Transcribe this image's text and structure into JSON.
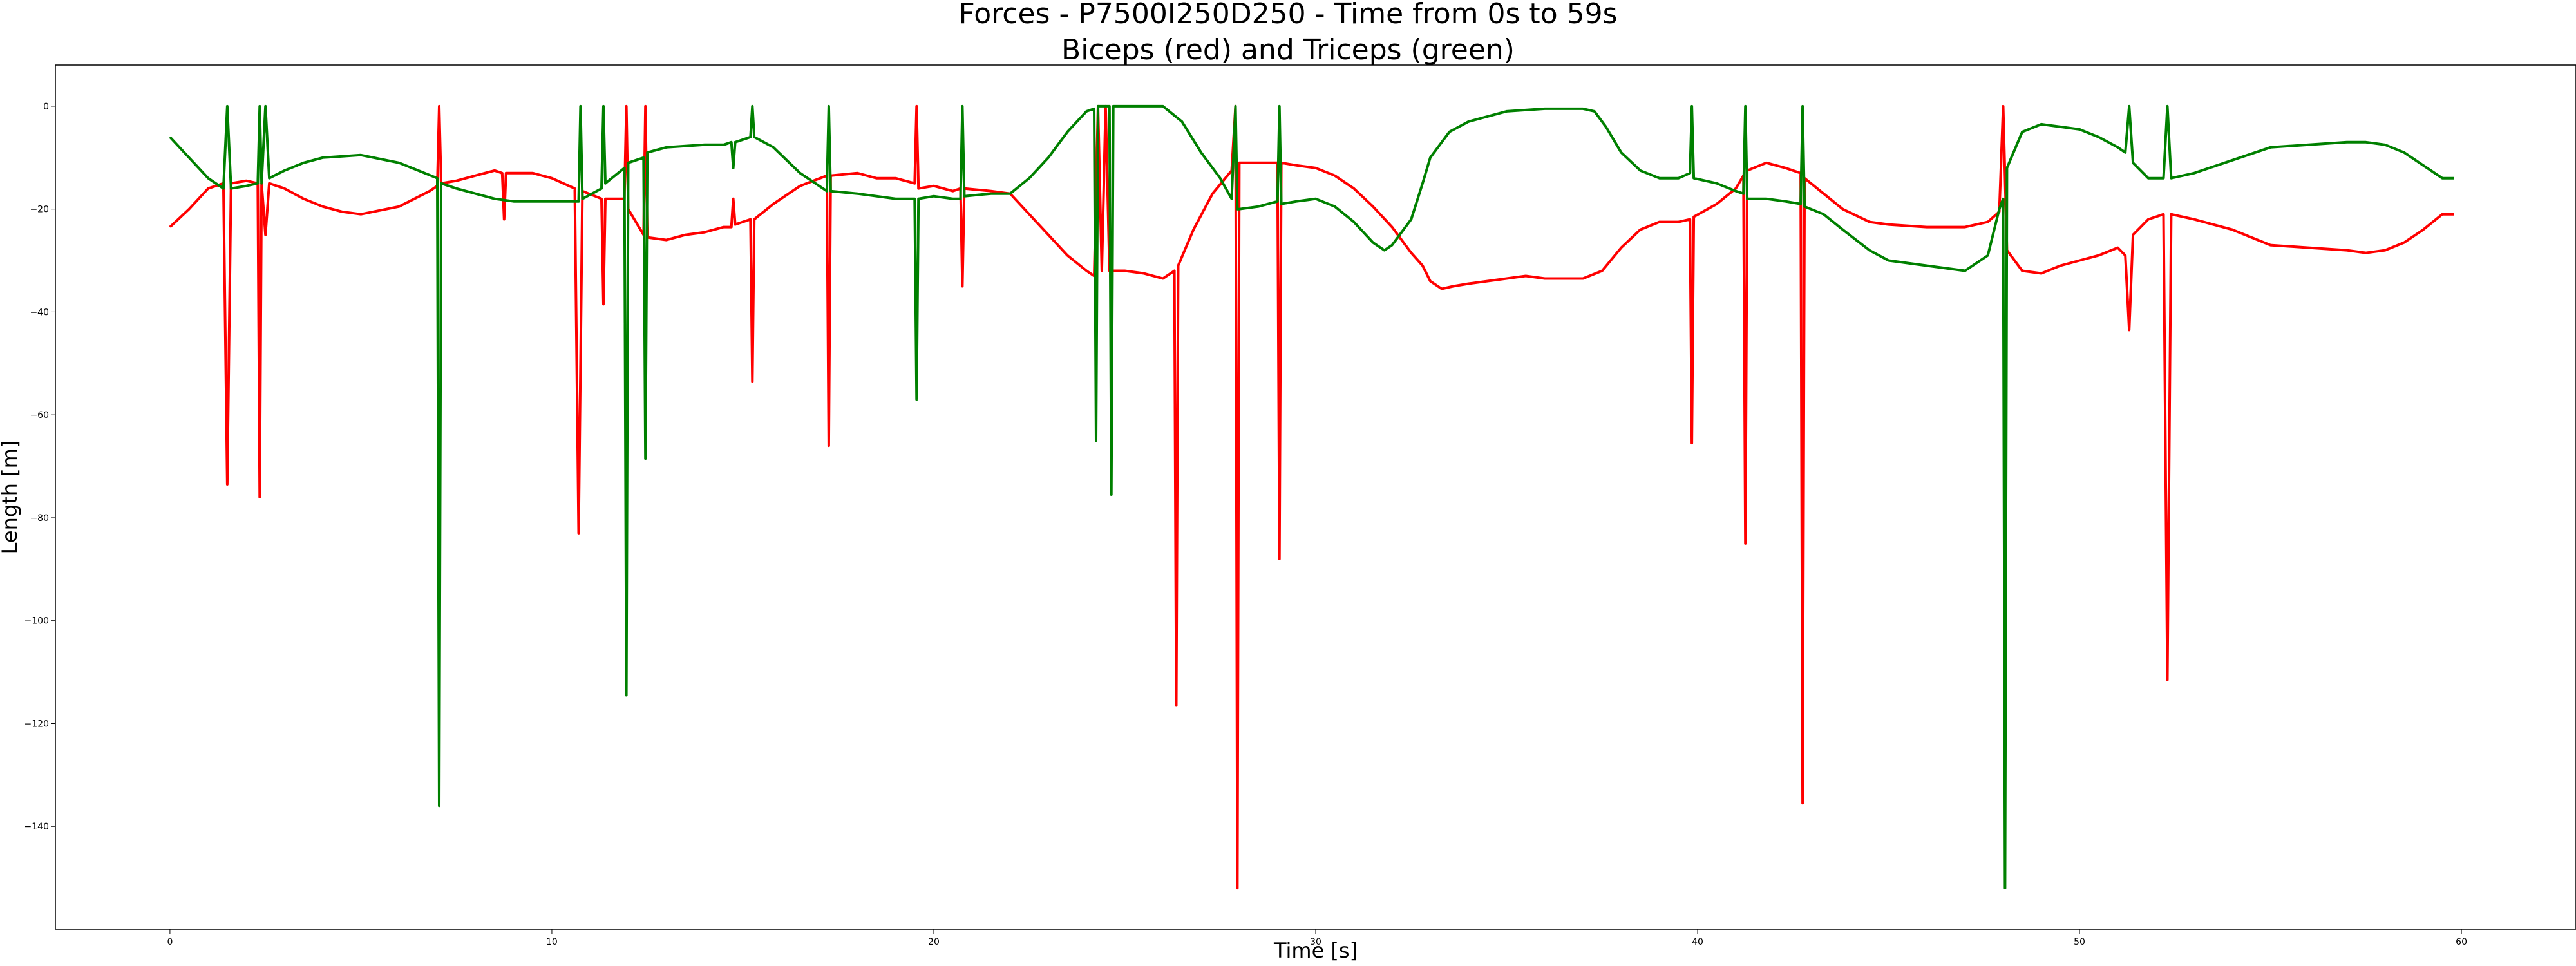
{
  "chart_data": {
    "type": "line",
    "title": "Forces - P7500I250D250 - Time from 0s to 59s",
    "subtitle": "Biceps (red) and Triceps (green)",
    "xlabel": "Time [s]",
    "ylabel": "Length [m]",
    "xlim": [
      -3,
      63
    ],
    "ylim": [
      -160,
      8
    ],
    "xticks": [
      0,
      10,
      20,
      30,
      40,
      50,
      60
    ],
    "yticks": [
      0,
      -20,
      -40,
      -60,
      -80,
      -100,
      -120,
      -140
    ],
    "grid": false,
    "legend": "none",
    "series": [
      {
        "color": "#ff0000",
        "points": [
          [
            0,
            -23.5
          ],
          [
            0.5,
            -20
          ],
          [
            1.0,
            -16
          ],
          [
            1.4,
            -15
          ],
          [
            1.5,
            -73.5
          ],
          [
            1.6,
            -15
          ],
          [
            2.0,
            -14.5
          ],
          [
            2.3,
            -15
          ],
          [
            2.35,
            -76
          ],
          [
            2.4,
            -15
          ],
          [
            2.5,
            -25
          ],
          [
            2.6,
            -15
          ],
          [
            3.0,
            -16
          ],
          [
            3.5,
            -18
          ],
          [
            4.0,
            -19.5
          ],
          [
            4.5,
            -20.5
          ],
          [
            5.0,
            -21
          ],
          [
            6.0,
            -19.5
          ],
          [
            6.8,
            -16.5
          ],
          [
            7.0,
            -15.5
          ],
          [
            7.05,
            0
          ],
          [
            7.1,
            -15
          ],
          [
            7.5,
            -14.5
          ],
          [
            8.0,
            -13.5
          ],
          [
            8.5,
            -12.5
          ],
          [
            8.7,
            -13
          ],
          [
            8.75,
            -22
          ],
          [
            8.8,
            -13
          ],
          [
            9.5,
            -13
          ],
          [
            10.0,
            -14
          ],
          [
            10.6,
            -16
          ],
          [
            10.7,
            -83
          ],
          [
            10.8,
            -16.5
          ],
          [
            11.3,
            -18
          ],
          [
            11.35,
            -38.5
          ],
          [
            11.4,
            -18
          ],
          [
            11.9,
            -18
          ],
          [
            11.95,
            0
          ],
          [
            12.0,
            -20
          ],
          [
            12.4,
            -25
          ],
          [
            12.45,
            0
          ],
          [
            12.5,
            -25.5
          ],
          [
            13.0,
            -26
          ],
          [
            13.5,
            -25
          ],
          [
            14.0,
            -24.5
          ],
          [
            14.5,
            -23.5
          ],
          [
            14.7,
            -23.5
          ],
          [
            14.75,
            -18
          ],
          [
            14.8,
            -23
          ],
          [
            15.2,
            -22
          ],
          [
            15.25,
            -53.5
          ],
          [
            15.3,
            -22
          ],
          [
            15.8,
            -19
          ],
          [
            16.5,
            -15.5
          ],
          [
            17.2,
            -13.5
          ],
          [
            17.25,
            -66
          ],
          [
            17.3,
            -13.5
          ],
          [
            18.0,
            -13
          ],
          [
            18.5,
            -14
          ],
          [
            19.0,
            -14
          ],
          [
            19.5,
            -15
          ],
          [
            19.55,
            0
          ],
          [
            19.6,
            -16
          ],
          [
            20.0,
            -15.5
          ],
          [
            20.5,
            -16.5
          ],
          [
            20.7,
            -16
          ],
          [
            20.75,
            -35
          ],
          [
            20.8,
            -16
          ],
          [
            21.5,
            -16.5
          ],
          [
            22.0,
            -17
          ],
          [
            22.5,
            -21
          ],
          [
            23.0,
            -25
          ],
          [
            23.5,
            -29
          ],
          [
            24.0,
            -32
          ],
          [
            24.2,
            -33
          ],
          [
            24.3,
            0
          ],
          [
            24.4,
            -32
          ],
          [
            24.5,
            0
          ],
          [
            24.6,
            -32
          ],
          [
            25.0,
            -32
          ],
          [
            25.5,
            -32.5
          ],
          [
            26.0,
            -33.5
          ],
          [
            26.3,
            -32
          ],
          [
            26.35,
            -116.5
          ],
          [
            26.4,
            -31
          ],
          [
            26.8,
            -24
          ],
          [
            27.3,
            -17
          ],
          [
            27.8,
            -12.5
          ],
          [
            27.9,
            0
          ],
          [
            27.95,
            -152
          ],
          [
            28.0,
            -11
          ],
          [
            28.5,
            -11
          ],
          [
            29.0,
            -11
          ],
          [
            29.05,
            -88
          ],
          [
            29.1,
            -11
          ],
          [
            29.5,
            -11.5
          ],
          [
            30.0,
            -12
          ],
          [
            30.5,
            -13.5
          ],
          [
            31.0,
            -16
          ],
          [
            31.5,
            -19.5
          ],
          [
            32.0,
            -23.5
          ],
          [
            32.5,
            -28.5
          ],
          [
            32.8,
            -31
          ],
          [
            33.0,
            -34
          ],
          [
            33.3,
            -35.5
          ],
          [
            33.6,
            -35
          ],
          [
            34.0,
            -34.5
          ],
          [
            35.0,
            -33.5
          ],
          [
            35.5,
            -33
          ],
          [
            36.0,
            -33.5
          ],
          [
            37.0,
            -33.5
          ],
          [
            37.5,
            -32
          ],
          [
            38.0,
            -27.5
          ],
          [
            38.5,
            -24
          ],
          [
            39.0,
            -22.5
          ],
          [
            39.5,
            -22.5
          ],
          [
            39.8,
            -22
          ],
          [
            39.85,
            -65.5
          ],
          [
            39.9,
            -21.5
          ],
          [
            40.5,
            -19
          ],
          [
            41.0,
            -16
          ],
          [
            41.2,
            -13.5
          ],
          [
            41.25,
            -85
          ],
          [
            41.3,
            -12.5
          ],
          [
            41.8,
            -11
          ],
          [
            42.3,
            -12
          ],
          [
            42.7,
            -13
          ],
          [
            42.75,
            -135.5
          ],
          [
            42.8,
            -14
          ],
          [
            43.3,
            -17
          ],
          [
            43.8,
            -20
          ],
          [
            44.5,
            -22.5
          ],
          [
            45.0,
            -23
          ],
          [
            46.0,
            -23.5
          ],
          [
            47.0,
            -23.5
          ],
          [
            47.6,
            -22.5
          ],
          [
            47.9,
            -20.5
          ],
          [
            48.0,
            0
          ],
          [
            48.1,
            -28
          ],
          [
            48.5,
            -32
          ],
          [
            49.0,
            -32.5
          ],
          [
            49.5,
            -31
          ],
          [
            50.0,
            -30
          ],
          [
            50.5,
            -29
          ],
          [
            51.0,
            -27.5
          ],
          [
            51.2,
            -29
          ],
          [
            51.3,
            -43.5
          ],
          [
            51.4,
            -25
          ],
          [
            51.8,
            -22
          ],
          [
            52.2,
            -21
          ],
          [
            52.3,
            -111.5
          ],
          [
            52.4,
            -21
          ],
          [
            53.0,
            -22
          ],
          [
            54.0,
            -24
          ],
          [
            55.0,
            -27
          ],
          [
            56.0,
            -27.5
          ],
          [
            57.0,
            -28
          ],
          [
            57.5,
            -28.5
          ],
          [
            58.0,
            -28
          ],
          [
            58.5,
            -26.5
          ],
          [
            59.0,
            -24
          ],
          [
            59.5,
            -21
          ],
          [
            59.8,
            -21
          ]
        ]
      },
      {
        "color": "#008000",
        "points": [
          [
            0,
            -6
          ],
          [
            0.5,
            -10
          ],
          [
            1.0,
            -14
          ],
          [
            1.4,
            -16
          ],
          [
            1.5,
            0
          ],
          [
            1.6,
            -16
          ],
          [
            2.0,
            -15.5
          ],
          [
            2.3,
            -15
          ],
          [
            2.35,
            0
          ],
          [
            2.4,
            -15
          ],
          [
            2.5,
            0
          ],
          [
            2.6,
            -14
          ],
          [
            3.0,
            -12.5
          ],
          [
            3.5,
            -11
          ],
          [
            4.0,
            -10
          ],
          [
            5.0,
            -9.5
          ],
          [
            6.0,
            -11
          ],
          [
            7.0,
            -14
          ],
          [
            7.05,
            -136
          ],
          [
            7.1,
            -15
          ],
          [
            7.5,
            -16
          ],
          [
            8.0,
            -17
          ],
          [
            8.5,
            -18
          ],
          [
            9.0,
            -18.5
          ],
          [
            10.0,
            -18.5
          ],
          [
            10.7,
            -18.5
          ],
          [
            10.75,
            0
          ],
          [
            10.8,
            -18
          ],
          [
            11.3,
            -16
          ],
          [
            11.35,
            0
          ],
          [
            11.4,
            -15
          ],
          [
            11.9,
            -12
          ],
          [
            11.95,
            -114.5
          ],
          [
            12.0,
            -11
          ],
          [
            12.4,
            -10
          ],
          [
            12.45,
            -68.5
          ],
          [
            12.5,
            -9
          ],
          [
            13.0,
            -8
          ],
          [
            14.0,
            -7.5
          ],
          [
            14.5,
            -7.5
          ],
          [
            14.7,
            -7
          ],
          [
            14.75,
            -12
          ],
          [
            14.8,
            -7
          ],
          [
            15.2,
            -6
          ],
          [
            15.25,
            0
          ],
          [
            15.3,
            -6
          ],
          [
            15.8,
            -8
          ],
          [
            16.5,
            -13
          ],
          [
            17.2,
            -16.5
          ],
          [
            17.25,
            0
          ],
          [
            17.3,
            -16.5
          ],
          [
            18.0,
            -17
          ],
          [
            18.5,
            -17.5
          ],
          [
            19.0,
            -18
          ],
          [
            19.5,
            -18
          ],
          [
            19.55,
            -57
          ],
          [
            19.6,
            -18
          ],
          [
            20.0,
            -17.5
          ],
          [
            20.5,
            -18
          ],
          [
            20.7,
            -18
          ],
          [
            20.75,
            0
          ],
          [
            20.8,
            -17.5
          ],
          [
            21.5,
            -17
          ],
          [
            22.0,
            -17
          ],
          [
            22.5,
            -14
          ],
          [
            23.0,
            -10
          ],
          [
            23.5,
            -5
          ],
          [
            24.0,
            -1
          ],
          [
            24.2,
            -0.5
          ],
          [
            24.25,
            -65
          ],
          [
            24.3,
            0
          ],
          [
            24.6,
            0
          ],
          [
            24.65,
            -75.5
          ],
          [
            24.7,
            0
          ],
          [
            25.0,
            0
          ],
          [
            25.5,
            0
          ],
          [
            26.0,
            0
          ],
          [
            26.5,
            -3
          ],
          [
            27.0,
            -9
          ],
          [
            27.5,
            -14
          ],
          [
            27.8,
            -18
          ],
          [
            27.9,
            0
          ],
          [
            27.95,
            -20
          ],
          [
            28.0,
            -20
          ],
          [
            28.5,
            -19.5
          ],
          [
            29.0,
            -18.5
          ],
          [
            29.05,
            0
          ],
          [
            29.1,
            -19
          ],
          [
            29.5,
            -18.5
          ],
          [
            30.0,
            -18
          ],
          [
            30.5,
            -19.5
          ],
          [
            31.0,
            -22.5
          ],
          [
            31.5,
            -26.5
          ],
          [
            31.8,
            -28
          ],
          [
            32.0,
            -27
          ],
          [
            32.5,
            -22
          ],
          [
            32.8,
            -15
          ],
          [
            33.0,
            -10
          ],
          [
            33.5,
            -5
          ],
          [
            34.0,
            -3
          ],
          [
            35.0,
            -1
          ],
          [
            36.0,
            -0.5
          ],
          [
            37.0,
            -0.5
          ],
          [
            37.3,
            -1
          ],
          [
            37.6,
            -4
          ],
          [
            38.0,
            -9
          ],
          [
            38.5,
            -12.5
          ],
          [
            39.0,
            -14
          ],
          [
            39.5,
            -14
          ],
          [
            39.8,
            -13
          ],
          [
            39.85,
            0
          ],
          [
            39.9,
            -14
          ],
          [
            40.5,
            -15
          ],
          [
            41.0,
            -16.5
          ],
          [
            41.2,
            -17
          ],
          [
            41.25,
            0
          ],
          [
            41.3,
            -18
          ],
          [
            41.8,
            -18
          ],
          [
            42.3,
            -18.5
          ],
          [
            42.7,
            -19
          ],
          [
            42.75,
            0
          ],
          [
            42.8,
            -19.5
          ],
          [
            43.3,
            -21
          ],
          [
            43.8,
            -24
          ],
          [
            44.5,
            -28
          ],
          [
            45.0,
            -30
          ],
          [
            46.0,
            -31
          ],
          [
            47.0,
            -32
          ],
          [
            47.6,
            -29
          ],
          [
            47.9,
            -20
          ],
          [
            48.0,
            -18
          ],
          [
            48.05,
            -152
          ],
          [
            48.1,
            -12
          ],
          [
            48.5,
            -5
          ],
          [
            49.0,
            -3.5
          ],
          [
            49.5,
            -4
          ],
          [
            50.0,
            -4.5
          ],
          [
            50.5,
            -6
          ],
          [
            51.0,
            -8
          ],
          [
            51.2,
            -9
          ],
          [
            51.3,
            0
          ],
          [
            51.4,
            -11
          ],
          [
            51.8,
            -14
          ],
          [
            52.2,
            -14
          ],
          [
            52.3,
            0
          ],
          [
            52.4,
            -14
          ],
          [
            53.0,
            -13
          ],
          [
            54.0,
            -10.5
          ],
          [
            55.0,
            -8
          ],
          [
            56.0,
            -7.5
          ],
          [
            57.0,
            -7
          ],
          [
            57.5,
            -7
          ],
          [
            58.0,
            -7.5
          ],
          [
            58.5,
            -9
          ],
          [
            59.0,
            -11.5
          ],
          [
            59.5,
            -14
          ],
          [
            59.8,
            -14
          ]
        ]
      }
    ]
  }
}
